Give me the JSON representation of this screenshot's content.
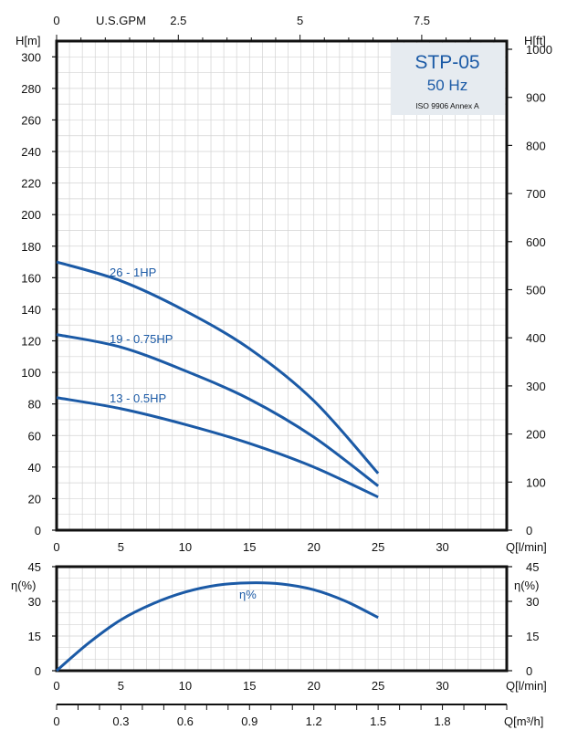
{
  "chart_data": [
    {
      "type": "line",
      "title": "STP-05",
      "subtitle": "50 Hz",
      "note": "ISO 9906 Annex A",
      "xlabel": "Q[l/min]",
      "ylabel_left": "H[m]",
      "ylabel_right": "H[ft]",
      "xlabel_top": "U.S.GPM",
      "xlim": [
        0,
        35
      ],
      "ylim": [
        0,
        310
      ],
      "xticks": [
        0,
        5,
        10,
        15,
        20,
        25,
        30
      ],
      "yticks_left": [
        0,
        20,
        40,
        60,
        80,
        100,
        120,
        140,
        160,
        180,
        200,
        220,
        240,
        260,
        280,
        300
      ],
      "yticks_right": [
        0,
        100,
        200,
        300,
        400,
        500,
        600,
        700,
        800,
        900,
        1000
      ],
      "xticks_top": [
        0,
        2.5,
        5,
        7.5
      ],
      "grid": true,
      "series": [
        {
          "name": "26 - 1HP",
          "color": "#1b5aa6",
          "x": [
            0,
            5,
            10,
            15,
            20,
            25
          ],
          "y": [
            170,
            158,
            139,
            115,
            82,
            36
          ]
        },
        {
          "name": "19 - 0.75HP",
          "color": "#1b5aa6",
          "x": [
            0,
            5,
            10,
            15,
            20,
            25
          ],
          "y": [
            124,
            116,
            101,
            83,
            59,
            28
          ]
        },
        {
          "name": "13 - 0.5HP",
          "color": "#1b5aa6",
          "x": [
            0,
            5,
            10,
            15,
            20,
            25
          ],
          "y": [
            84,
            77,
            67,
            55,
            40,
            21
          ]
        }
      ]
    },
    {
      "type": "line",
      "xlabel": "Q[l/min]",
      "ylabel_left": "η(%)",
      "ylabel_right": "η(%)",
      "xlim": [
        0,
        35
      ],
      "ylim": [
        0,
        45
      ],
      "xticks": [
        0,
        5,
        10,
        15,
        20,
        25,
        30
      ],
      "yticks": [
        0,
        15,
        30,
        45
      ],
      "grid": true,
      "series": [
        {
          "name": "η%",
          "color": "#1b5aa6",
          "x": [
            0,
            2.5,
            5,
            7.5,
            10,
            12.5,
            15,
            17.5,
            20,
            22.5,
            25
          ],
          "y": [
            0,
            12,
            22,
            29,
            34,
            37,
            38,
            37.5,
            35,
            30,
            23
          ]
        }
      ]
    },
    {
      "type": "axis",
      "xlabel": "Q[m³/h]",
      "xlim": [
        0,
        2.1
      ],
      "xticks": [
        "0",
        "0.3",
        "0.6",
        "0.9",
        "1.2",
        "1.5",
        "1.8"
      ]
    }
  ]
}
